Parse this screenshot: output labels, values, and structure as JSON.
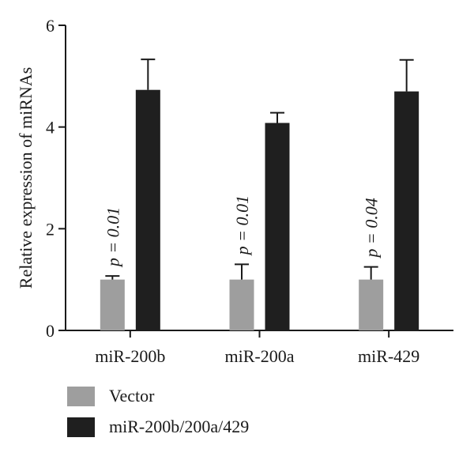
{
  "chart_data": {
    "type": "bar",
    "categories": [
      "miR-200b",
      "miR-200a",
      "miR-429"
    ],
    "ylabel": "Relative expression of miRNAs",
    "ylim": [
      0,
      6
    ],
    "yticks": [
      "0",
      "2",
      "4",
      "6"
    ],
    "grid": false,
    "legend_position": "bottom-left",
    "series": [
      {
        "name": "Vector",
        "color": "#9e9e9e",
        "values": [
          1.0,
          1.0,
          1.0
        ],
        "errors": [
          0.07,
          0.3,
          0.25
        ]
      },
      {
        "name": "miR-200b/200a/429",
        "color": "#1f1f1f",
        "values": [
          4.73,
          4.08,
          4.7
        ],
        "errors": [
          0.6,
          0.2,
          0.62
        ]
      }
    ],
    "annotations": [
      "p = 0.01",
      "p = 0.01",
      "p = 0.04"
    ]
  }
}
